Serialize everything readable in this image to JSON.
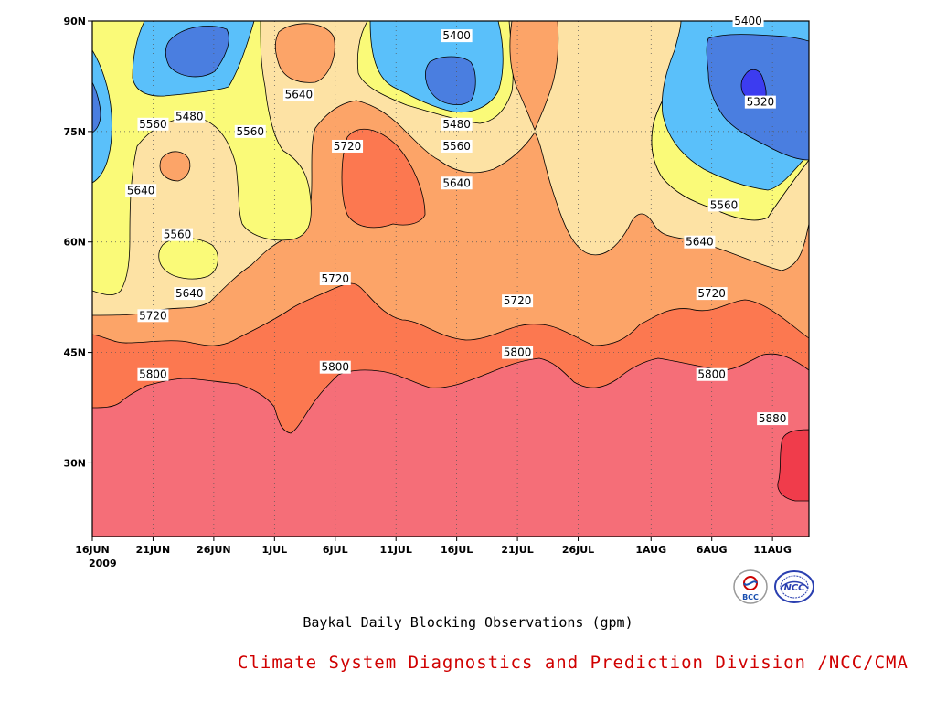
{
  "chart_data": {
    "type": "heatmap",
    "subtype": "filled contour (latitude-time Hovmoller)",
    "variable_units": "gpm",
    "x_axis": {
      "tick_labels": [
        "16JUN",
        "21JUN",
        "26JUN",
        "1JUL",
        "6JUL",
        "11JUL",
        "16JUL",
        "21JUL",
        "26JUL",
        "1AUG",
        "6AUG",
        "11AUG"
      ],
      "year_label": "2009",
      "range": [
        "2009-06-16",
        "2009-08-14"
      ]
    },
    "y_axis": {
      "tick_labels": [
        "30N",
        "45N",
        "60N",
        "75N",
        "90N"
      ],
      "tick_values": [
        30,
        45,
        60,
        75,
        90
      ],
      "range": [
        20,
        90
      ]
    },
    "contour_levels": [
      5320,
      5400,
      5480,
      5560,
      5640,
      5720,
      5800,
      5880
    ],
    "level_colors": {
      "below_5320": "#3c3cf0",
      "5320_5400": "#4a7ee0",
      "5400_5480": "#5ac0fa",
      "5480_5560": "#fafa78",
      "5560_5640": "#fde2a4",
      "5640_5720": "#fca468",
      "5720_5800": "#fc7850",
      "5800_5880": "#f56e78",
      "above_5880": "#f03c4b"
    },
    "contour_labels": [
      {
        "text": "5400",
        "date": "2009-07-16",
        "lat": 88
      },
      {
        "text": "5400",
        "date": "2009-08-09",
        "lat": 90
      },
      {
        "text": "5480",
        "date": "2009-06-24",
        "lat": 77
      },
      {
        "text": "5480",
        "date": "2009-07-16",
        "lat": 76
      },
      {
        "text": "5560",
        "date": "2009-06-21",
        "lat": 76
      },
      {
        "text": "5560",
        "date": "2009-06-29",
        "lat": 75
      },
      {
        "text": "5560",
        "date": "2009-07-16",
        "lat": 73
      },
      {
        "text": "5560",
        "date": "2009-06-23",
        "lat": 61
      },
      {
        "text": "5560",
        "date": "2009-08-07",
        "lat": 65
      },
      {
        "text": "5640",
        "date": "2009-07-03",
        "lat": 80
      },
      {
        "text": "5640",
        "date": "2009-06-20",
        "lat": 67
      },
      {
        "text": "5640",
        "date": "2009-07-16",
        "lat": 68
      },
      {
        "text": "5640",
        "date": "2009-06-24",
        "lat": 53
      },
      {
        "text": "5640",
        "date": "2009-08-05",
        "lat": 60
      },
      {
        "text": "5720",
        "date": "2009-07-07",
        "lat": 73
      },
      {
        "text": "5720",
        "date": "2009-07-06",
        "lat": 55
      },
      {
        "text": "5720",
        "date": "2009-06-21",
        "lat": 50
      },
      {
        "text": "5720",
        "date": "2009-07-21",
        "lat": 52
      },
      {
        "text": "5720",
        "date": "2009-08-06",
        "lat": 53
      },
      {
        "text": "5800",
        "date": "2009-06-21",
        "lat": 42
      },
      {
        "text": "5800",
        "date": "2009-07-06",
        "lat": 43
      },
      {
        "text": "5800",
        "date": "2009-07-21",
        "lat": 45
      },
      {
        "text": "5800",
        "date": "2009-08-06",
        "lat": 42
      },
      {
        "text": "5880",
        "date": "2009-08-11",
        "lat": 36
      },
      {
        "text": "5320",
        "date": "2009-08-10",
        "lat": 79
      }
    ],
    "grid": true,
    "title": "Baykal Daily Blocking Observations (gpm)"
  },
  "credit": "Climate System Diagnostics and Prediction Division /NCC/CMA",
  "logos": [
    {
      "icon": "bcc-logo",
      "text": "BCC"
    },
    {
      "icon": "ncc-logo",
      "text": "NCC"
    }
  ]
}
